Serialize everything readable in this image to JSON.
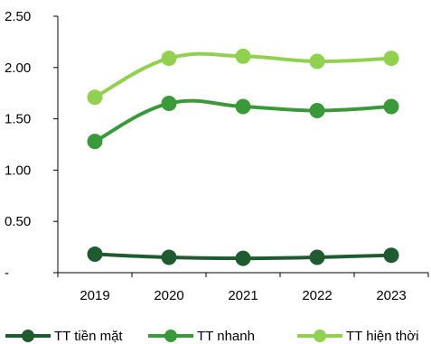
{
  "chart_data": {
    "type": "line",
    "categories": [
      "2019",
      "2020",
      "2021",
      "2022",
      "2023"
    ],
    "series": [
      {
        "name": "TT tiền mặt",
        "color": "#1e5b2e",
        "values": [
          0.18,
          0.15,
          0.14,
          0.15,
          0.17
        ]
      },
      {
        "name": "TT nhanh",
        "color": "#3a9a3a",
        "values": [
          1.28,
          1.65,
          1.62,
          1.58,
          1.62
        ]
      },
      {
        "name": "TT hiện thời",
        "color": "#92d050",
        "values": [
          1.71,
          2.09,
          2.11,
          2.06,
          2.09
        ]
      }
    ],
    "y_ticks": [
      {
        "value": 0,
        "label": "-"
      },
      {
        "value": 0.5,
        "label": "0.50"
      },
      {
        "value": 1.0,
        "label": "1.00"
      },
      {
        "value": 1.5,
        "label": "1.50"
      },
      {
        "value": 2.0,
        "label": "2.00"
      },
      {
        "value": 2.5,
        "label": "2.50"
      }
    ],
    "ylim": [
      0,
      2.5
    ],
    "grid": false,
    "legend_position": "bottom",
    "title": "",
    "xlabel": "",
    "ylabel": ""
  }
}
